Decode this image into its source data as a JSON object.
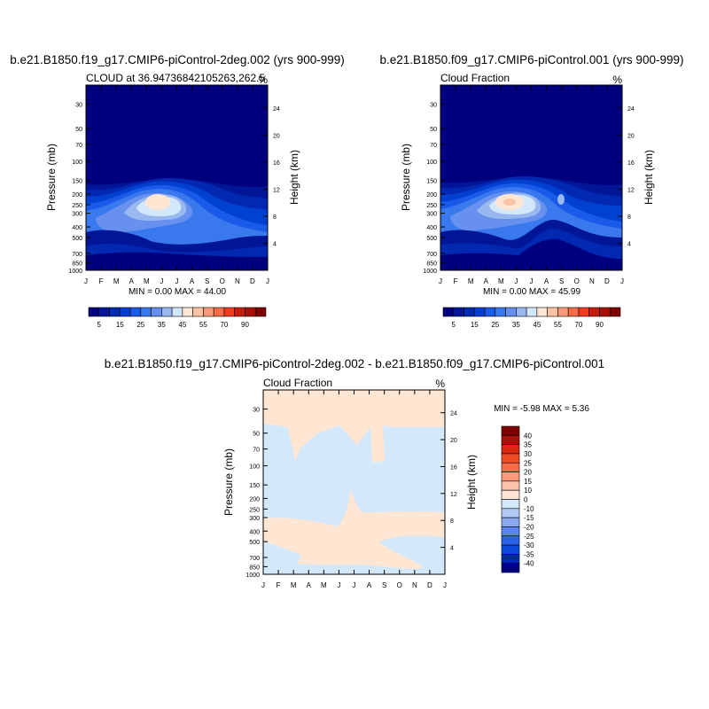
{
  "months": [
    "J",
    "F",
    "M",
    "A",
    "M",
    "J",
    "J",
    "A",
    "S",
    "O",
    "N",
    "D",
    "J"
  ],
  "pressure_ticks": [
    30,
    50,
    70,
    100,
    150,
    200,
    250,
    300,
    400,
    500,
    700,
    850,
    1000
  ],
  "height_ticks": [
    24,
    20,
    16,
    12,
    8,
    4
  ],
  "colors": {
    "abs_levels": [
      "#00007f",
      "#001696",
      "#0028b0",
      "#0040d0",
      "#1a5ae8",
      "#3a78ee",
      "#6890ee",
      "#9ab8f0",
      "#d4e8fc",
      "#ffe6d2",
      "#fcc2a8",
      "#fa9a7a",
      "#f86c4a",
      "#f03c1e",
      "#c81e0e",
      "#a81208",
      "#7f0000"
    ],
    "diff_levels": [
      "#00007f",
      "#002aa8",
      "#0a48d8",
      "#2c62ea",
      "#5a84ee",
      "#8aaaf0",
      "#b2c8f4",
      "#d4e8fc",
      "#ffe6d2",
      "#fcc2a8",
      "#fa9a7a",
      "#f86c4a",
      "#f04a26",
      "#d8280e",
      "#a81208",
      "#7f0000"
    ]
  },
  "chart_data": [
    {
      "type": "heatmap",
      "title": "b.e21.B1850.f19_g17.CMIP6-piControl-2deg.002 (yrs 900-999)",
      "subtitle_left": "CLOUD at 36.94736842105263,262.5",
      "subtitle_right": "%",
      "xlabel": "",
      "ylabel": "Pressure (mb)",
      "ylabel_right": "Height (km)",
      "y_scale": "log",
      "ylim": [
        1000,
        20
      ],
      "stats": "MIN =   0.00 MAX =  44.00",
      "min": 0.0,
      "max": 44.0,
      "units": "%"
    },
    {
      "type": "heatmap",
      "title": "b.e21.B1850.f09_g17.CMIP6-piControl.001 (yrs 900-999)",
      "subtitle_left": "Cloud Fraction",
      "subtitle_right": "%",
      "xlabel": "",
      "ylabel": "Pressure (mb)",
      "ylabel_right": "Height (km)",
      "y_scale": "log",
      "ylim": [
        1000,
        20
      ],
      "stats": "MIN =   0.00 MAX =  45.99",
      "min": 0.0,
      "max": 45.99,
      "units": "%"
    },
    {
      "type": "heatmap",
      "title": "b.e21.B1850.f19_g17.CMIP6-piControl-2deg.002 - b.e21.B1850.f09_g17.CMIP6-piControl.001",
      "subtitle_left": "Cloud Fraction",
      "subtitle_right": "%",
      "xlabel": "",
      "ylabel": "Pressure (mb)",
      "ylabel_right": "Height (km)",
      "y_scale": "log",
      "ylim": [
        1000,
        20
      ],
      "stats": "MIN =  -5.98 MAX =   5.36",
      "min": -5.98,
      "max": 5.36,
      "units": "%"
    }
  ],
  "colorbar_abs": {
    "orientation": "horizontal",
    "labels": [
      "5",
      "15",
      "25",
      "35",
      "45",
      "55",
      "70",
      "90"
    ]
  },
  "colorbar_diff": {
    "orientation": "vertical",
    "labels": [
      "40",
      "35",
      "30",
      "25",
      "20",
      "15",
      "10",
      "0",
      "-10",
      "-15",
      "-20",
      "-25",
      "-30",
      "-35",
      "-40"
    ]
  }
}
